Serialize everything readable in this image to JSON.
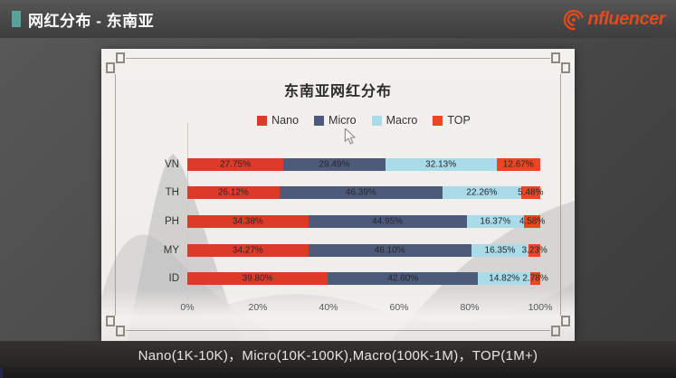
{
  "header": {
    "title": "网红分布 - 东南亚",
    "accent_color": "#58a29a",
    "logo_text": "nfluencer",
    "logo_icon": "spiral-icon",
    "logo_color": "#e5491d"
  },
  "chart_data": {
    "type": "bar",
    "stacked": true,
    "orientation": "horizontal",
    "title": "东南亚网红分布",
    "categories": [
      "VN",
      "TH",
      "PH",
      "MY",
      "ID"
    ],
    "series": [
      {
        "name": "Nano",
        "color": "#dd3a29",
        "values": [
          27.75,
          26.12,
          34.38,
          34.27,
          39.8
        ]
      },
      {
        "name": "Micro",
        "color": "#4d5a7a",
        "values": [
          29.49,
          46.39,
          44.95,
          46.1,
          42.6
        ]
      },
      {
        "name": "Macro",
        "color": "#a9dbe9",
        "values": [
          32.13,
          22.26,
          16.37,
          16.35,
          14.82
        ]
      },
      {
        "name": "TOP",
        "color": "#ec4522",
        "values": [
          12.67,
          5.48,
          4.58,
          3.23,
          2.78
        ]
      }
    ],
    "x_ticks": [
      "0%",
      "20%",
      "40%",
      "60%",
      "80%",
      "100%"
    ],
    "xlim": [
      0,
      100
    ],
    "value_suffix": "%",
    "value_decimals": 2,
    "legend_position": "top",
    "grid": false
  },
  "footer": {
    "caption": "Nano(1K-10K)，Micro(10K-100K),Macro(100K-1M)，TOP(1M+)"
  }
}
